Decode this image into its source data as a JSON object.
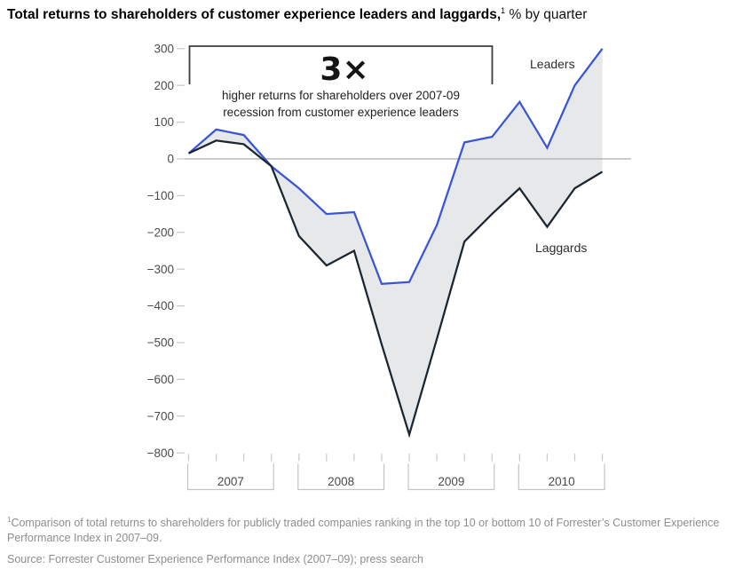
{
  "title": {
    "bold": "Total returns to shareholders of customer experience leaders and laggards,",
    "superscript": "1",
    "suffix": " % by quarter"
  },
  "annotation": {
    "multiplier": "3×",
    "line1": "higher returns for shareholders over 2007-09",
    "line2": "recession from customer experience leaders"
  },
  "series_labels": {
    "leaders": "Leaders",
    "laggards": "Laggards"
  },
  "footnote": {
    "superscript": "1",
    "text": "Comparison of total returns to shareholders for publicly traded companies ranking in the top 10 or bottom 10 of Forrester’s Customer Experience Performance Index in 2007–09."
  },
  "source": "Source: Forrester Customer Experience Performance Index (2007–09); press search",
  "colors": {
    "leaders_line": "#3a55d6",
    "laggards_line": "#1b2631",
    "band_fill": "#e7e8ea",
    "zero_line": "#acacac",
    "tick": "#c9c9c9",
    "year_bracket": "#c4c4c4",
    "annotation_bracket": "#3d3d3d"
  },
  "chart_data": {
    "type": "line",
    "title": "Total returns to shareholders of customer experience leaders and laggards, % by quarter",
    "x": [
      "Q1 2007",
      "Q2 2007",
      "Q3 2007",
      "Q4 2007",
      "Q1 2008",
      "Q2 2008",
      "Q3 2008",
      "Q4 2008",
      "Q1 2009",
      "Q2 2009",
      "Q3 2009",
      "Q4 2009",
      "Q1 2010",
      "Q2 2010",
      "Q3 2010",
      "Q4 2010"
    ],
    "years": [
      "2007",
      "2008",
      "2009",
      "2010"
    ],
    "series": [
      {
        "name": "Leaders",
        "values": [
          15,
          80,
          65,
          -20,
          -80,
          -150,
          -145,
          -340,
          -335,
          -180,
          45,
          60,
          155,
          30,
          200,
          300
        ]
      },
      {
        "name": "Laggards",
        "values": [
          15,
          50,
          40,
          -20,
          -210,
          -290,
          -250,
          -505,
          -750,
          -490,
          -225,
          -150,
          -80,
          -185,
          -80,
          -35
        ]
      }
    ],
    "band_between_series": true,
    "y_ticks": [
      300,
      200,
      100,
      0,
      -100,
      -200,
      -300,
      -400,
      -500,
      -600,
      -700,
      -800
    ],
    "ylim": [
      -800,
      300
    ],
    "ylabel": "",
    "xlabel": "",
    "grid": "zero-line-only",
    "legend_position": "inline-labels",
    "annotation_span_quarters": [
      "Q1 2007",
      "Q4 2009"
    ]
  }
}
